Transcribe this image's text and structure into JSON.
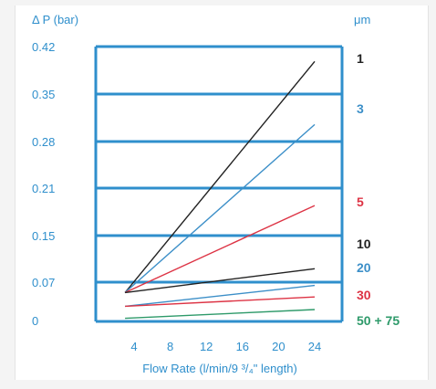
{
  "chart_data": {
    "type": "line",
    "title": "",
    "ylabel": "Δ P (bar)",
    "xlabel": "Flow Rate (l/min/9 ³/₄\" length)",
    "series_header": "μm",
    "y_ticks": [
      "0.42",
      "0.35",
      "0.28",
      "0.21",
      "0.15",
      "0.07",
      "0"
    ],
    "x_ticks": [
      4,
      8,
      12,
      16,
      20,
      24
    ],
    "xlim": [
      1,
      27
    ],
    "ylim": [
      0,
      0.42
    ],
    "grid": true,
    "series": [
      {
        "name": "1",
        "color": "#222222",
        "x": [
          3,
          24
        ],
        "y": [
          0.051,
          0.398
        ]
      },
      {
        "name": "3",
        "color": "#3c8fc8",
        "x": [
          3,
          24
        ],
        "y": [
          0.051,
          0.305
        ]
      },
      {
        "name": "5",
        "color": "#dd3344",
        "x": [
          3,
          24
        ],
        "y": [
          0.051,
          0.188
        ]
      },
      {
        "name": "10",
        "color": "#222222",
        "x": [
          3,
          24
        ],
        "y": [
          0.051,
          0.093
        ]
      },
      {
        "name": "20",
        "color": "#3c8fc8",
        "x": [
          3,
          24
        ],
        "y": [
          0.026,
          0.064
        ]
      },
      {
        "name": "30",
        "color": "#dd3344",
        "x": [
          3,
          24
        ],
        "y": [
          0.026,
          0.043
        ]
      },
      {
        "name": "50 + 75",
        "color": "#2e9a6a",
        "x": [
          3,
          24
        ],
        "y": [
          0.004,
          0.02
        ]
      }
    ],
    "colors": {
      "frame": "#2f8fcc",
      "text_blue": "#2f8fcc"
    }
  }
}
